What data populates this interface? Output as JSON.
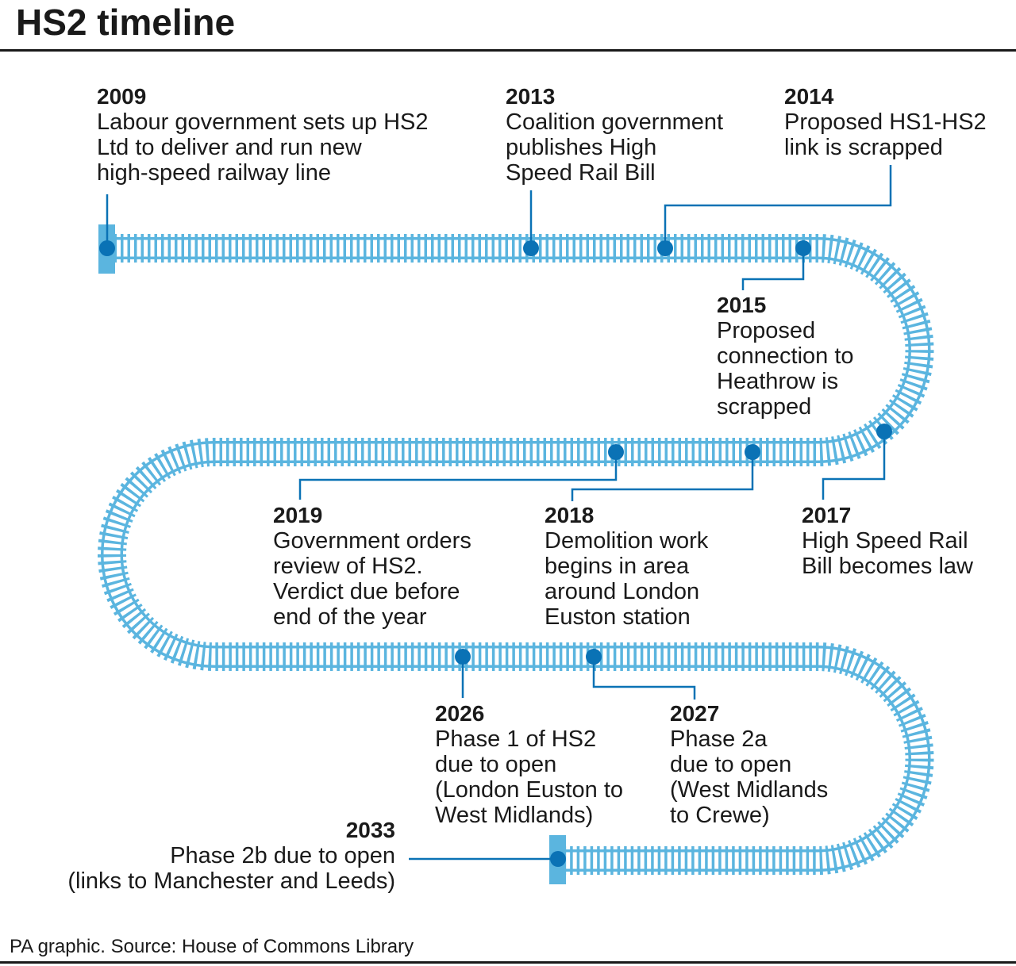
{
  "title": "HS2 timeline",
  "events": [
    {
      "year": "2009",
      "lines": [
        "Labour government sets up HS2",
        "Ltd to deliver and run new",
        "high-speed railway line"
      ]
    },
    {
      "year": "2013",
      "lines": [
        "Coalition government",
        "publishes High",
        "Speed Rail Bill"
      ]
    },
    {
      "year": "2014",
      "lines": [
        "Proposed HS1-HS2",
        "link is scrapped"
      ]
    },
    {
      "year": "2015",
      "lines": [
        "Proposed",
        "connection to",
        "Heathrow is",
        "scrapped"
      ]
    },
    {
      "year": "2017",
      "lines": [
        "High Speed Rail",
        "Bill becomes law"
      ]
    },
    {
      "year": "2018",
      "lines": [
        "Demolition work",
        "begins in area",
        "around London",
        "Euston station"
      ]
    },
    {
      "year": "2019",
      "lines": [
        "Government orders",
        "review of HS2.",
        "Verdict due before",
        "end of the year"
      ]
    },
    {
      "year": "2026",
      "lines": [
        "Phase 1 of HS2",
        "due to open",
        "(London Euston to",
        "West Midlands)"
      ]
    },
    {
      "year": "2027",
      "lines": [
        "Phase 2a",
        "due to open",
        "(West Midlands",
        "to Crewe)"
      ]
    },
    {
      "year": "2033",
      "lines": [
        "Phase 2b due to open",
        "(links to Manchester and Leeds)"
      ]
    }
  ],
  "source": "PA graphic. Source: House of Commons Library"
}
